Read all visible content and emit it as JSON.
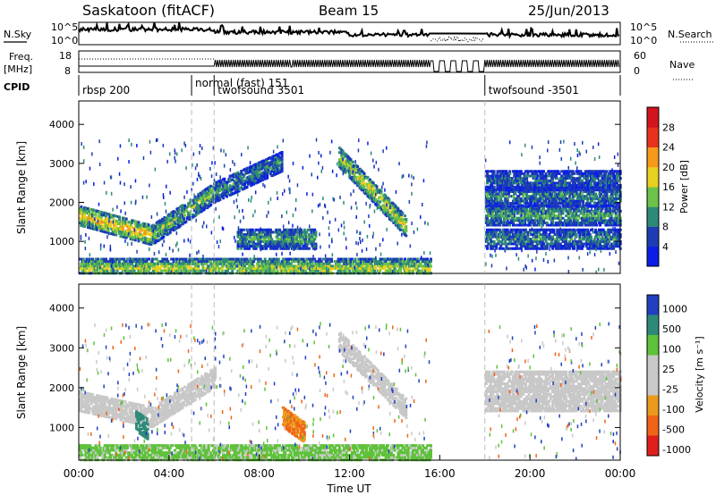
{
  "header": {
    "station": "Saskatoon (fitACF)",
    "beam": "Beam 15",
    "date": "25/Jun/2013"
  },
  "panel_labels": {
    "nsky": "N.Sky",
    "freq_line1": "Freq.",
    "freq_line2": "[MHz]",
    "cpid": "CPID",
    "nsearch": "N.Search",
    "nave": "Nave"
  },
  "noise_axis": {
    "left_top": "10^5",
    "left_bottom": "10^0",
    "right_top": "10^5",
    "right_bottom": "10^0"
  },
  "freq_axis": {
    "left_ticks": [
      "18",
      "8"
    ],
    "right_ticks": [
      "60",
      "0"
    ]
  },
  "cpid_segments": [
    {
      "label": "rbsp 200",
      "start_hour": 0.0
    },
    {
      "label": "normal (fast) 151",
      "start_hour": 5.0
    },
    {
      "label": "twofsound 3501",
      "start_hour": 6.0
    },
    {
      "label": "twofsound -3501",
      "start_hour": 18.0
    }
  ],
  "time_axis": {
    "label": "Time UT",
    "ticks": [
      "00:00",
      "04:00",
      "08:00",
      "12:00",
      "16:00",
      "20:00",
      "00:00"
    ],
    "tick_hours": [
      0,
      4,
      8,
      12,
      16,
      20,
      24
    ],
    "range_hours": [
      0,
      24
    ]
  },
  "range_axis": {
    "label": "Slant Range [km]",
    "ticks": [
      1000,
      2000,
      3000,
      4000
    ],
    "range_km": [
      180,
      4600
    ]
  },
  "power_scale": {
    "title": "Power [dB]",
    "labels": [
      "4",
      "8",
      "12",
      "16",
      "20",
      "24",
      "28"
    ],
    "colors": [
      "#0a1ee6",
      "#1e3cb4",
      "#2e8a78",
      "#6cc24a",
      "#e8d020",
      "#f59a1a",
      "#e8321e",
      "#d2141e"
    ]
  },
  "velocity_scale": {
    "title": "Velocity [m s⁻¹]",
    "labels": [
      "1000",
      "500",
      "100",
      "25",
      "-25",
      "-100",
      "-500",
      "-1000"
    ],
    "colors": [
      "#2040c0",
      "#2e8a78",
      "#5ec23a",
      "#c8c8c8",
      "#c8c8c8",
      "#ec9a1e",
      "#f06418",
      "#e01e1e"
    ]
  },
  "chart_data": {
    "type": "heatmap",
    "title": "Saskatoon (fitACF)",
    "xlabel": "Time UT",
    "ylabel": "Slant Range [km]",
    "xlim_hours": [
      0,
      24
    ],
    "ylim_km": [
      180,
      4600
    ],
    "data_gap_hours": [
      15.6,
      18.0
    ],
    "power_echo_bands": [
      {
        "start_hour": 0.0,
        "end_hour": 3.2,
        "range_start_km": 1700,
        "range_end_km": 1200,
        "power_db": 20
      },
      {
        "start_hour": 3.2,
        "end_hour": 6.0,
        "range_start_km": 1200,
        "range_end_km": 2300,
        "power_db": 14
      },
      {
        "start_hour": 6.0,
        "end_hour": 9.0,
        "range_start_km": 2300,
        "range_end_km": 3100,
        "power_db": 10
      },
      {
        "start_hour": 11.5,
        "end_hour": 14.5,
        "range_start_km": 3200,
        "range_end_km": 1400,
        "power_db": 18
      },
      {
        "start_hour": 7.0,
        "end_hour": 10.5,
        "range_start_km": 1100,
        "range_end_km": 1100,
        "power_db": 12
      },
      {
        "start_hour": 18.0,
        "end_hour": 24.0,
        "range_start_km": 1700,
        "range_end_km": 1700,
        "power_db": 12
      },
      {
        "start_hour": 18.0,
        "end_hour": 24.0,
        "range_start_km": 2200,
        "range_end_km": 2200,
        "power_db": 10
      },
      {
        "start_hour": 18.0,
        "end_hour": 24.0,
        "range_start_km": 2600,
        "range_end_km": 2600,
        "power_db": 8
      },
      {
        "start_hour": 18.0,
        "end_hour": 24.0,
        "range_start_km": 1100,
        "range_end_km": 1100,
        "power_db": 10
      },
      {
        "start_hour": 0.0,
        "end_hour": 15.6,
        "range_start_km": 350,
        "range_end_km": 350,
        "power_db": 16
      }
    ],
    "velocity_echo_bands": [
      {
        "start_hour": 0.0,
        "end_hour": 3.2,
        "range_start_km": 1700,
        "range_end_km": 1300,
        "velocity_ms": 0
      },
      {
        "start_hour": 3.2,
        "end_hour": 6.0,
        "range_start_km": 1300,
        "range_end_km": 2300,
        "velocity_ms": 0
      },
      {
        "start_hour": 11.5,
        "end_hour": 14.5,
        "range_start_km": 3200,
        "range_end_km": 1500,
        "velocity_ms": 0
      },
      {
        "start_hour": 9.0,
        "end_hour": 10.0,
        "range_start_km": 1300,
        "range_end_km": 900,
        "velocity_ms": -300
      },
      {
        "start_hour": 2.5,
        "end_hour": 3.0,
        "range_start_km": 1200,
        "range_end_km": 1000,
        "velocity_ms": 600
      },
      {
        "start_hour": 18.0,
        "end_hour": 24.0,
        "range_start_km": 1700,
        "range_end_km": 1700,
        "velocity_ms": 0
      },
      {
        "start_hour": 18.0,
        "end_hour": 24.0,
        "range_start_km": 2200,
        "range_end_km": 2200,
        "velocity_ms": 0
      },
      {
        "start_hour": 0.0,
        "end_hour": 15.6,
        "range_start_km": 350,
        "range_end_km": 350,
        "velocity_ms": 80
      }
    ]
  }
}
